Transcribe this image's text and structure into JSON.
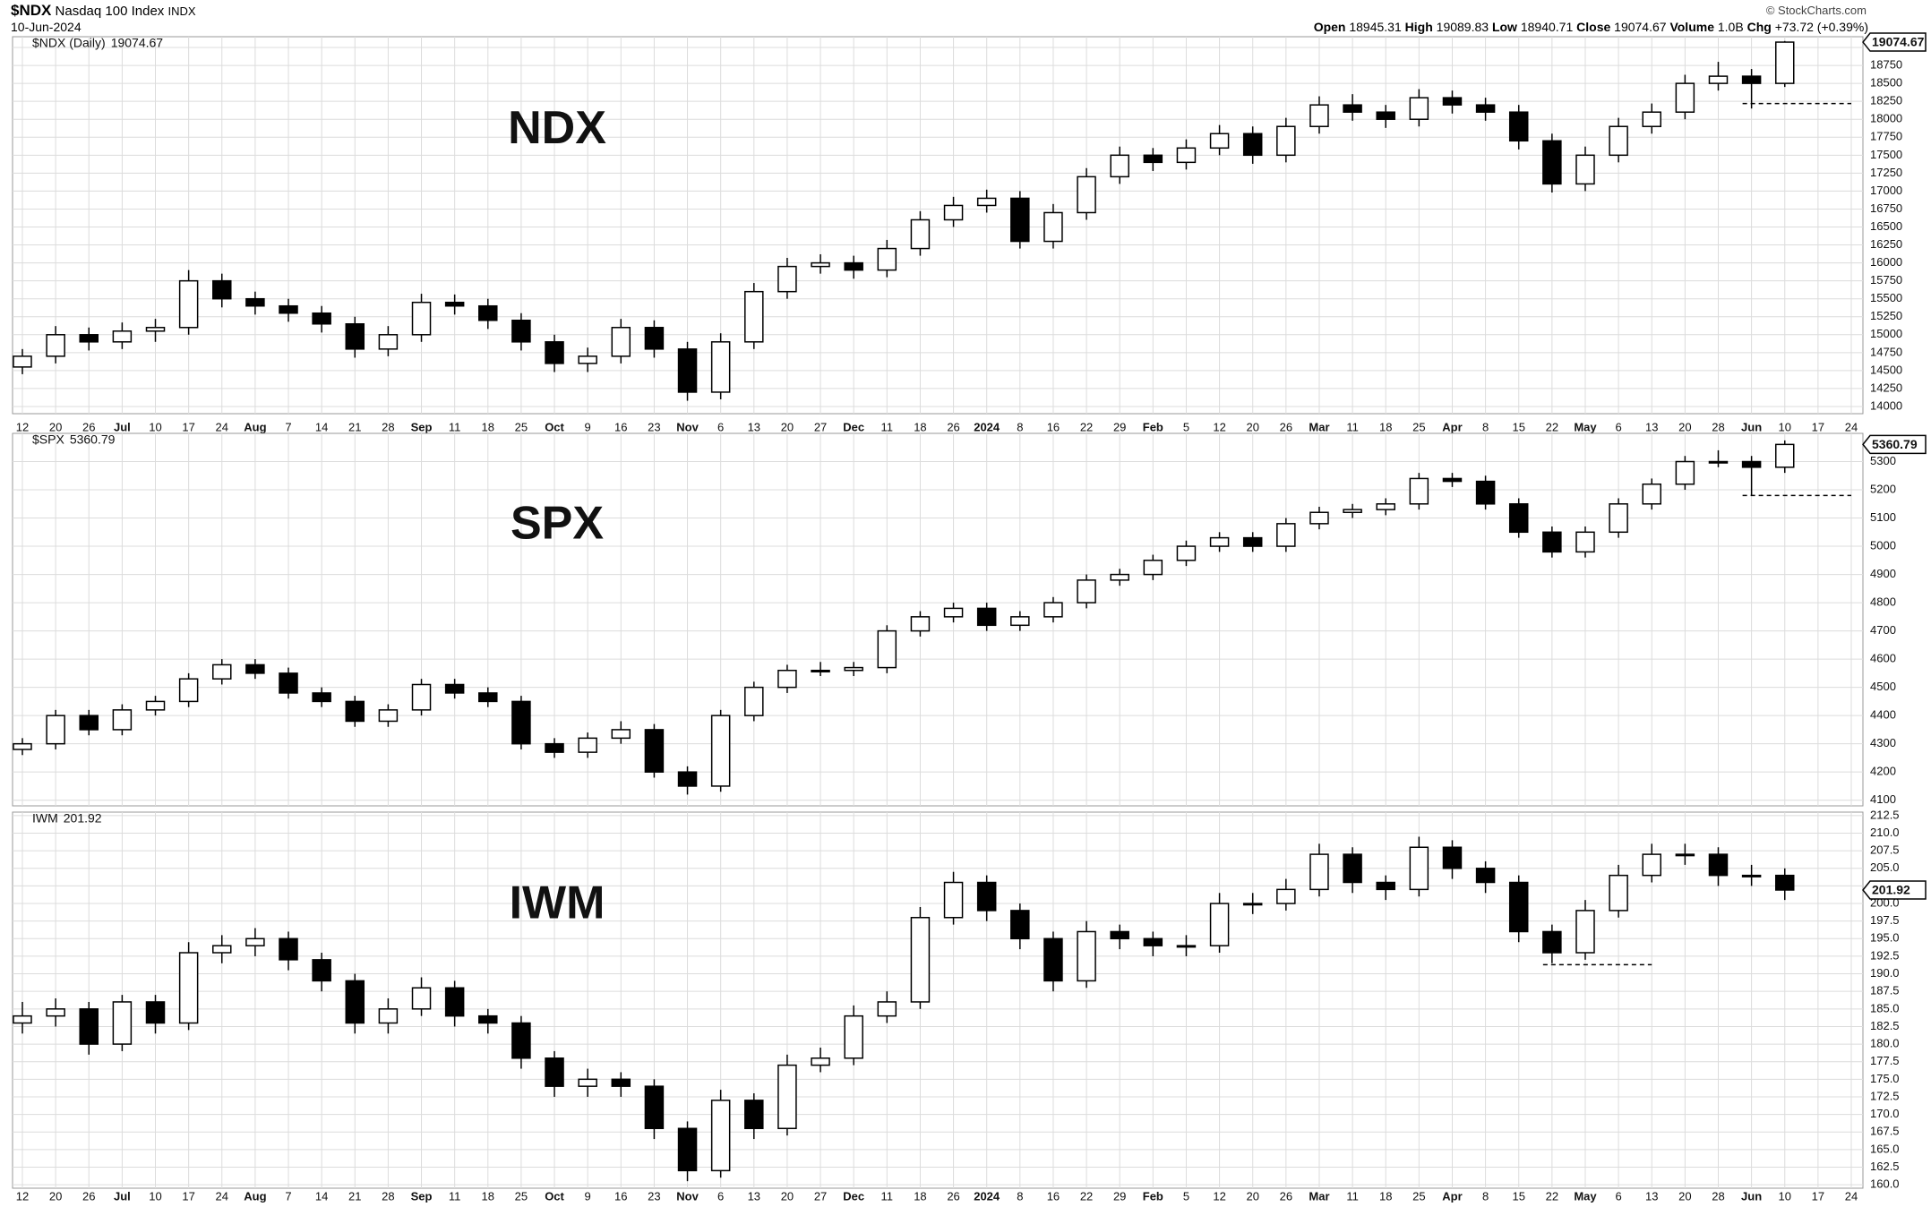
{
  "header": {
    "symbol": "$NDX",
    "name": "Nasdaq 100 Index",
    "exchange": "INDX",
    "date": "10-Jun-2024",
    "credit": "© StockCharts.com",
    "open_label": "Open",
    "open": 18945.31,
    "high_label": "High",
    "high": 19089.83,
    "low_label": "Low",
    "low": 18940.71,
    "close_label": "Close",
    "close": 19074.67,
    "volume_label": "Volume",
    "volume": {
      "value": 1000000000,
      "label": "1.0B"
    },
    "chg_label": "Chg",
    "chg": {
      "value": 73.72,
      "label": "+73.72"
    },
    "chg_pct": {
      "value": 0.39,
      "label": "(+0.39%)"
    }
  },
  "chart_data": [
    {
      "type": "candlestick",
      "legend": "$NDX (Daily)",
      "label": "NDX",
      "grid": true,
      "categories": [
        "12",
        "20",
        "26",
        "Jul",
        "10",
        "17",
        "24",
        "Aug",
        "7",
        "14",
        "21",
        "28",
        "Sep",
        "11",
        "18",
        "25",
        "Oct",
        "9",
        "16",
        "23",
        "Nov",
        "6",
        "13",
        "20",
        "27",
        "Dec",
        "11",
        "18",
        "26",
        "2024",
        "8",
        "16",
        "22",
        "29",
        "Feb",
        "5",
        "12",
        "20",
        "26",
        "Mar",
        "11",
        "18",
        "25",
        "Apr",
        "8",
        "15",
        "22",
        "May",
        "6",
        "13",
        "20",
        "28",
        "Jun",
        "10",
        "17",
        "24"
      ],
      "ylim": [
        13900,
        19150
      ],
      "yticks": [
        14000,
        14250,
        14500,
        14750,
        15000,
        15250,
        15500,
        15750,
        16000,
        16250,
        16500,
        16750,
        17000,
        17250,
        17500,
        17750,
        18000,
        18250,
        18500,
        18750,
        19000
      ],
      "level": {
        "value": 18220,
        "from": "Jun",
        "to": "24"
      },
      "candles": [
        [
          14550,
          14800,
          14450,
          14700
        ],
        [
          14700,
          15120,
          14600,
          15000
        ],
        [
          15000,
          15100,
          14780,
          14900
        ],
        [
          14900,
          15170,
          14800,
          15050
        ],
        [
          15050,
          15220,
          14900,
          15100
        ],
        [
          15100,
          15900,
          15000,
          15750
        ],
        [
          15750,
          15850,
          15380,
          15500
        ],
        [
          15500,
          15600,
          15280,
          15400
        ],
        [
          15400,
          15500,
          15180,
          15300
        ],
        [
          15300,
          15400,
          15030,
          15150
        ],
        [
          15150,
          15250,
          14680,
          14800
        ],
        [
          14800,
          15120,
          14700,
          15000
        ],
        [
          15000,
          15570,
          14900,
          15450
        ],
        [
          15450,
          15560,
          15280,
          15400
        ],
        [
          15400,
          15500,
          15080,
          15200
        ],
        [
          15200,
          15300,
          14780,
          14900
        ],
        [
          14900,
          15000,
          14480,
          14600
        ],
        [
          14600,
          14820,
          14480,
          14700
        ],
        [
          14700,
          15220,
          14600,
          15100
        ],
        [
          15100,
          15200,
          14680,
          14800
        ],
        [
          14800,
          14900,
          14080,
          14200
        ],
        [
          14200,
          15020,
          14100,
          14900
        ],
        [
          14900,
          15720,
          14800,
          15600
        ],
        [
          15600,
          16070,
          15500,
          15950
        ],
        [
          15950,
          16120,
          15850,
          16000
        ],
        [
          16000,
          16100,
          15780,
          15900
        ],
        [
          15900,
          16320,
          15800,
          16200
        ],
        [
          16200,
          16720,
          16100,
          16600
        ],
        [
          16600,
          16920,
          16500,
          16800
        ],
        [
          16800,
          17020,
          16700,
          16900
        ],
        [
          16900,
          17000,
          16200,
          16300
        ],
        [
          16300,
          16820,
          16200,
          16700
        ],
        [
          16700,
          17320,
          16600,
          17200
        ],
        [
          17200,
          17620,
          17100,
          17500
        ],
        [
          17500,
          17600,
          17280,
          17400
        ],
        [
          17400,
          17720,
          17300,
          17600
        ],
        [
          17600,
          17920,
          17500,
          17800
        ],
        [
          17800,
          17900,
          17380,
          17500
        ],
        [
          17500,
          18020,
          17400,
          17900
        ],
        [
          17900,
          18320,
          17800,
          18200
        ],
        [
          18200,
          18350,
          17980,
          18100
        ],
        [
          18100,
          18200,
          17880,
          18000
        ],
        [
          18000,
          18420,
          17900,
          18300
        ],
        [
          18300,
          18400,
          18080,
          18200
        ],
        [
          18200,
          18300,
          17980,
          18100
        ],
        [
          18100,
          18200,
          17580,
          17700
        ],
        [
          17700,
          17800,
          16980,
          17100
        ],
        [
          17100,
          17620,
          17000,
          17500
        ],
        [
          17500,
          18020,
          17400,
          17900
        ],
        [
          17900,
          18220,
          17800,
          18100
        ],
        [
          18100,
          18620,
          18000,
          18500
        ],
        [
          18500,
          18800,
          18400,
          18600
        ],
        [
          18600,
          18700,
          18150,
          18500
        ],
        [
          18500,
          19089.83,
          18450,
          19074.67
        ],
        null,
        null
      ]
    },
    {
      "type": "candlestick",
      "legend": "$SPX",
      "label": "SPX",
      "grid": true,
      "ylim": [
        4080,
        5400
      ],
      "yticks": [
        4100,
        4200,
        4300,
        4400,
        4500,
        4600,
        4700,
        4800,
        4900,
        5000,
        5100,
        5200,
        5300
      ],
      "level": {
        "value": 5180,
        "from": "Jun",
        "to": "24"
      },
      "candles": [
        [
          4280,
          4320,
          4260,
          4300
        ],
        [
          4300,
          4420,
          4280,
          4400
        ],
        [
          4400,
          4420,
          4330,
          4350
        ],
        [
          4350,
          4440,
          4330,
          4420
        ],
        [
          4420,
          4470,
          4400,
          4450
        ],
        [
          4450,
          4550,
          4430,
          4530
        ],
        [
          4530,
          4600,
          4510,
          4580
        ],
        [
          4580,
          4600,
          4530,
          4550
        ],
        [
          4550,
          4570,
          4460,
          4480
        ],
        [
          4480,
          4500,
          4430,
          4450
        ],
        [
          4450,
          4470,
          4360,
          4380
        ],
        [
          4380,
          4440,
          4360,
          4420
        ],
        [
          4420,
          4530,
          4400,
          4510
        ],
        [
          4510,
          4530,
          4460,
          4480
        ],
        [
          4480,
          4500,
          4430,
          4450
        ],
        [
          4450,
          4470,
          4280,
          4300
        ],
        [
          4300,
          4320,
          4250,
          4270
        ],
        [
          4270,
          4340,
          4250,
          4320
        ],
        [
          4320,
          4380,
          4300,
          4350
        ],
        [
          4350,
          4370,
          4180,
          4200
        ],
        [
          4200,
          4220,
          4120,
          4150
        ],
        [
          4150,
          4420,
          4130,
          4400
        ],
        [
          4400,
          4520,
          4380,
          4500
        ],
        [
          4500,
          4580,
          4480,
          4560
        ],
        [
          4560,
          4590,
          4540,
          4560
        ],
        [
          4560,
          4590,
          4540,
          4570
        ],
        [
          4570,
          4720,
          4550,
          4700
        ],
        [
          4700,
          4770,
          4680,
          4750
        ],
        [
          4750,
          4800,
          4730,
          4780
        ],
        [
          4780,
          4800,
          4700,
          4720
        ],
        [
          4720,
          4770,
          4700,
          4750
        ],
        [
          4750,
          4820,
          4730,
          4800
        ],
        [
          4800,
          4900,
          4780,
          4880
        ],
        [
          4880,
          4920,
          4860,
          4900
        ],
        [
          4900,
          4970,
          4880,
          4950
        ],
        [
          4950,
          5020,
          4930,
          5000
        ],
        [
          5000,
          5050,
          4980,
          5030
        ],
        [
          5030,
          5050,
          4980,
          5000
        ],
        [
          5000,
          5100,
          4980,
          5080
        ],
        [
          5080,
          5140,
          5060,
          5120
        ],
        [
          5120,
          5150,
          5100,
          5130
        ],
        [
          5130,
          5170,
          5110,
          5150
        ],
        [
          5150,
          5260,
          5130,
          5240
        ],
        [
          5240,
          5260,
          5210,
          5230
        ],
        [
          5230,
          5250,
          5130,
          5150
        ],
        [
          5150,
          5170,
          5030,
          5050
        ],
        [
          5050,
          5070,
          4960,
          4980
        ],
        [
          4980,
          5070,
          4960,
          5050
        ],
        [
          5050,
          5170,
          5030,
          5150
        ],
        [
          5150,
          5240,
          5130,
          5220
        ],
        [
          5220,
          5320,
          5200,
          5300
        ],
        [
          5300,
          5340,
          5280,
          5300
        ],
        [
          5300,
          5320,
          5180,
          5280
        ],
        [
          5280,
          5375,
          5260,
          5360.79
        ],
        null,
        null
      ]
    },
    {
      "type": "candlestick",
      "legend": "IWM",
      "label": "IWM",
      "grid": true,
      "categories": [
        "12",
        "20",
        "26",
        "Jul",
        "10",
        "17",
        "24",
        "Aug",
        "7",
        "14",
        "21",
        "28",
        "Sep",
        "11",
        "18",
        "25",
        "Oct",
        "9",
        "16",
        "23",
        "Nov",
        "6",
        "13",
        "20",
        "27",
        "Dec",
        "11",
        "18",
        "26",
        "2024",
        "8",
        "16",
        "22",
        "29",
        "Feb",
        "5",
        "12",
        "20",
        "26",
        "Mar",
        "11",
        "18",
        "25",
        "Apr",
        "8",
        "15",
        "22",
        "May",
        "6",
        "13",
        "20",
        "28",
        "Jun",
        "10",
        "17",
        "24"
      ],
      "ylim": [
        159.5,
        213
      ],
      "yticks": [
        {
          "value": 160,
          "label": "160.0"
        },
        {
          "value": 162.5,
          "label": "162.5"
        },
        {
          "value": 165,
          "label": "165.0"
        },
        {
          "value": 167.5,
          "label": "167.5"
        },
        {
          "value": 170,
          "label": "170.0"
        },
        {
          "value": 172.5,
          "label": "172.5"
        },
        {
          "value": 175,
          "label": "175.0"
        },
        {
          "value": 177.5,
          "label": "177.5"
        },
        {
          "value": 180,
          "label": "180.0"
        },
        {
          "value": 182.5,
          "label": "182.5"
        },
        {
          "value": 185,
          "label": "185.0"
        },
        {
          "value": 187.5,
          "label": "187.5"
        },
        {
          "value": 190,
          "label": "190.0"
        },
        {
          "value": 192.5,
          "label": "192.5"
        },
        {
          "value": 195,
          "label": "195.0"
        },
        {
          "value": 197.5,
          "label": "197.5"
        },
        {
          "value": 200,
          "label": "200.0"
        },
        {
          "value": 202.5,
          "label": "202.5"
        },
        {
          "value": 205,
          "label": "205.0"
        },
        {
          "value": 207.5,
          "label": "207.5"
        },
        {
          "value": 210,
          "label": "210.0"
        },
        {
          "value": 212.5,
          "label": "212.5"
        }
      ],
      "level": {
        "value": 191.3,
        "from": "22",
        "to": "13"
      },
      "candles": [
        [
          183,
          186,
          181.5,
          184
        ],
        [
          184,
          186.5,
          182.5,
          185
        ],
        [
          185,
          186,
          178.5,
          180
        ],
        [
          180,
          187,
          179,
          186
        ],
        [
          186,
          187,
          181.5,
          183
        ],
        [
          183,
          194.5,
          182,
          193
        ],
        [
          193,
          195.5,
          191.5,
          194
        ],
        [
          194,
          196.5,
          192.5,
          195
        ],
        [
          195,
          196,
          190.5,
          192
        ],
        [
          192,
          193,
          187.5,
          189
        ],
        [
          189,
          190,
          181.5,
          183
        ],
        [
          183,
          186.5,
          181.5,
          185
        ],
        [
          185,
          189.5,
          184,
          188
        ],
        [
          188,
          189,
          182.5,
          184
        ],
        [
          184,
          185,
          181.5,
          183
        ],
        [
          183,
          184,
          176.5,
          178
        ],
        [
          178,
          179,
          172.5,
          174
        ],
        [
          174,
          176.5,
          172.5,
          175
        ],
        [
          175,
          176,
          172.5,
          174
        ],
        [
          174,
          175,
          166.5,
          168
        ],
        [
          168,
          169,
          160.5,
          162
        ],
        [
          162,
          173.5,
          161,
          172
        ],
        [
          172,
          173,
          166.5,
          168
        ],
        [
          168,
          178.5,
          167,
          177
        ],
        [
          177,
          179.5,
          176,
          178
        ],
        [
          178,
          185.5,
          177,
          184
        ],
        [
          184,
          187.5,
          183,
          186
        ],
        [
          186,
          199.5,
          185,
          198
        ],
        [
          198,
          204.5,
          197,
          203
        ],
        [
          203,
          204,
          197.5,
          199
        ],
        [
          199,
          200,
          193.5,
          195
        ],
        [
          195,
          196,
          187.5,
          189
        ],
        [
          189,
          197.5,
          188,
          196
        ],
        [
          196,
          197,
          193.5,
          195
        ],
        [
          195,
          196,
          192.5,
          194
        ],
        [
          194,
          195.5,
          192.5,
          194
        ],
        [
          194,
          201.5,
          193,
          200
        ],
        [
          200,
          201.5,
          198.5,
          200
        ],
        [
          200,
          203.5,
          199,
          202
        ],
        [
          202,
          208.5,
          201,
          207
        ],
        [
          207,
          208,
          201.5,
          203
        ],
        [
          203,
          204,
          200.5,
          202
        ],
        [
          202,
          209.5,
          201,
          208
        ],
        [
          208,
          209,
          203.5,
          205
        ],
        [
          205,
          206,
          201.5,
          203
        ],
        [
          203,
          204,
          194.5,
          196
        ],
        [
          196,
          197,
          191.5,
          193
        ],
        [
          193,
          200.5,
          192,
          199
        ],
        [
          199,
          205.5,
          198,
          204
        ],
        [
          204,
          208.5,
          203,
          207
        ],
        [
          207,
          208.5,
          205.5,
          207
        ],
        [
          207,
          208,
          202.5,
          204
        ],
        [
          204,
          205.5,
          202.5,
          204
        ],
        [
          204,
          205,
          200.5,
          201.92
        ],
        null,
        null
      ]
    }
  ]
}
